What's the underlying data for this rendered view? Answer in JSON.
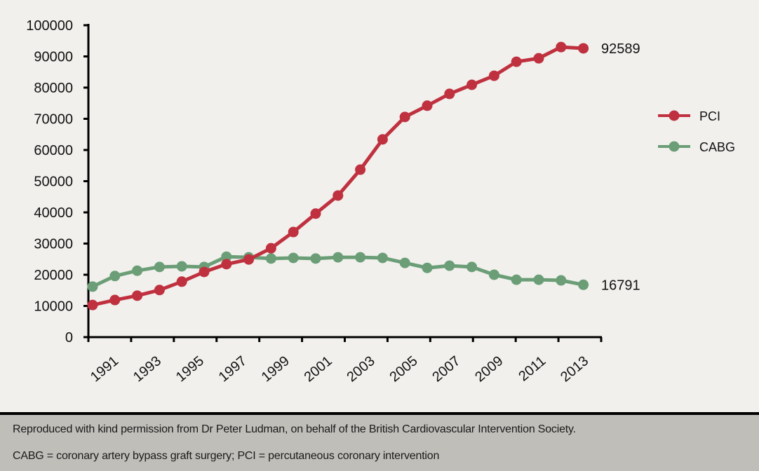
{
  "chart_data": {
    "type": "line",
    "title": "",
    "xlabel": "",
    "ylabel": "",
    "x": [
      1991,
      1992,
      1993,
      1994,
      1995,
      1996,
      1997,
      1998,
      1999,
      2000,
      2001,
      2002,
      2003,
      2004,
      2005,
      2006,
      2007,
      2008,
      2009,
      2010,
      2011,
      2012,
      2013
    ],
    "x_tick_labels": [
      "1991",
      "1993",
      "1995",
      "1997",
      "1999",
      "2001",
      "2003",
      "2005",
      "2007",
      "2009",
      "2011",
      "2013"
    ],
    "y_ticks": [
      0,
      10000,
      20000,
      30000,
      40000,
      50000,
      60000,
      70000,
      80000,
      90000,
      100000
    ],
    "ylim": [
      0,
      100000
    ],
    "grid": false,
    "legend_position": "right",
    "series": [
      {
        "name": "PCI",
        "color": "#c0313f",
        "values": [
          10300,
          11900,
          13300,
          15100,
          17800,
          20900,
          23400,
          24900,
          28500,
          33700,
          39600,
          45400,
          53700,
          63400,
          70600,
          74200,
          78000,
          80900,
          83800,
          88300,
          89400,
          93000,
          92589
        ],
        "end_label": "92589"
      },
      {
        "name": "CABG",
        "color": "#6b9e76",
        "values": [
          16200,
          19600,
          21300,
          22500,
          22700,
          22500,
          25800,
          25600,
          25200,
          25400,
          25200,
          25600,
          25600,
          25400,
          23800,
          22200,
          22900,
          22500,
          20000,
          18400,
          18400,
          18200,
          16791
        ],
        "end_label": "16791"
      }
    ]
  },
  "footer": {
    "line1": "Reproduced with kind permission from Dr Peter Ludman, on behalf of the British Cardiovascular Intervention Society.",
    "line2": "CABG = coronary artery bypass graft surgery; PCI = percutaneous coronary intervention"
  }
}
